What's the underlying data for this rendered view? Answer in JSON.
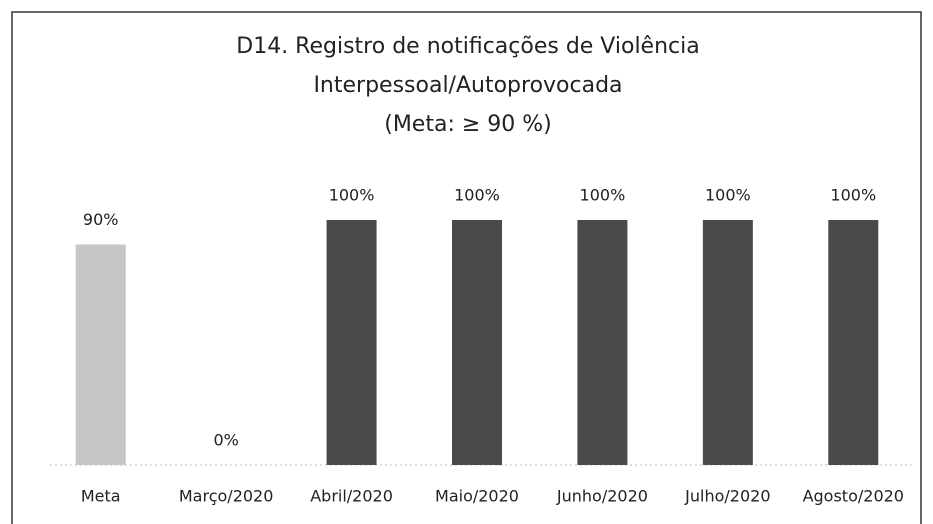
{
  "chart_data": {
    "type": "bar",
    "title": [
      "D14. Registro de notificações de Violência",
      "Interpessoal/Autoprovocada",
      "(Meta: ≥ 90 %)"
    ],
    "categories": [
      "Meta",
      "Março/2020",
      "Abril/2020",
      "Maio/2020",
      "Junho/2020",
      "Julho/2020",
      "Agosto/2020"
    ],
    "values": [
      90,
      0,
      100,
      100,
      100,
      100,
      100
    ],
    "value_labels": [
      "90%",
      "0%",
      "100%",
      "100%",
      "100%",
      "100%",
      "100%"
    ],
    "colors": [
      "#c6c6c6",
      "#4a4a4a",
      "#4a4a4a",
      "#4a4a4a",
      "#4a4a4a",
      "#4a4a4a",
      "#4a4a4a"
    ],
    "ylim": [
      0,
      100
    ]
  }
}
